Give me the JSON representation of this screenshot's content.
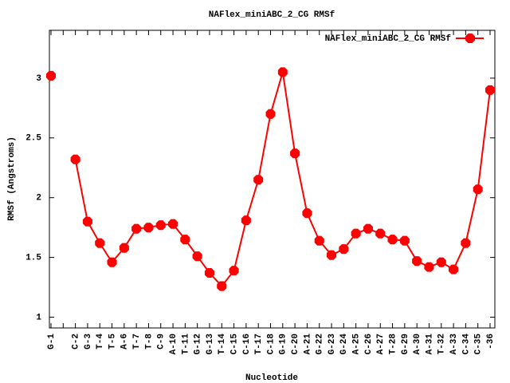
{
  "chart_data": {
    "type": "line",
    "title": "NAFlex_miniABC_2_CG RMSf",
    "x_label": "Nucleotide",
    "y_label": "RMSf (Angstroms)",
    "categories": [
      "G-1",
      null,
      "C-2",
      "G-3",
      "T-4",
      "T-5",
      "A-6",
      "T-7",
      "T-8",
      "C-9",
      "A-10",
      "T-11",
      "G-12",
      "G-13",
      "T-14",
      "C-15",
      "C-16",
      "T-17",
      "C-18",
      "G-19",
      "C-20",
      "A-21",
      "G-22",
      "G-23",
      "G-24",
      "A-25",
      "C-26",
      "A-27",
      "T-28",
      "G-29",
      "A-30",
      "A-31",
      "T-32",
      "A-33",
      "C-34",
      "C-35",
      "-36"
    ],
    "series": [
      {
        "name": "NAFlex_miniABC_2_CG RMSf",
        "color": "#ff0000",
        "values": [
          3.02,
          null,
          2.32,
          1.8,
          1.62,
          1.46,
          1.58,
          1.74,
          1.75,
          1.77,
          1.78,
          1.65,
          1.51,
          1.37,
          1.26,
          1.39,
          1.81,
          2.15,
          2.7,
          3.05,
          2.37,
          1.87,
          1.64,
          1.52,
          1.57,
          1.7,
          1.74,
          1.7,
          1.65,
          1.64,
          1.47,
          1.42,
          1.46,
          1.4,
          1.62,
          2.07,
          2.9
        ]
      }
    ],
    "ylim": [
      0.91,
      3.4
    ],
    "yticks": [
      1,
      1.5,
      2,
      2.5,
      3
    ],
    "grid": false,
    "legend": "top-right"
  }
}
